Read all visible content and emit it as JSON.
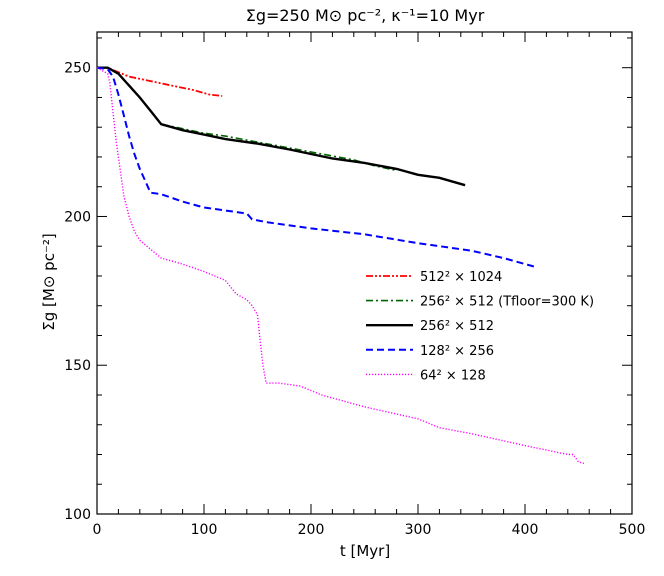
{
  "chart_data": {
    "type": "line",
    "title": "Σg=250 M⊙ pc⁻², κ⁻¹=10 Myr",
    "xlabel": "t [Myr]",
    "ylabel": "Σg [M⊙ pc⁻²]",
    "xlim": [
      0,
      500
    ],
    "ylim": [
      100,
      262
    ],
    "xticks": [
      0,
      100,
      200,
      300,
      400,
      500
    ],
    "yticks": [
      100,
      150,
      200,
      250
    ],
    "grid": false,
    "legend_position": "center-right",
    "series": [
      {
        "name": "512² × 1024",
        "color": "#ff0000",
        "dash": "dash-dot-dot",
        "points": [
          [
            0,
            250
          ],
          [
            10,
            250
          ],
          [
            20,
            248.5
          ],
          [
            30,
            247
          ],
          [
            50,
            245.5
          ],
          [
            70,
            244
          ],
          [
            90,
            242.5
          ],
          [
            105,
            241
          ],
          [
            117,
            240.5
          ]
        ]
      },
      {
        "name": "256² × 512 (Tfloor=300 K)",
        "color": "#006400",
        "dash": "dash-dot",
        "points": [
          [
            0,
            250
          ],
          [
            10,
            250
          ],
          [
            20,
            248
          ],
          [
            30,
            244
          ],
          [
            40,
            240
          ],
          [
            50,
            235.5
          ],
          [
            60,
            231
          ],
          [
            80,
            229.5
          ],
          [
            100,
            228
          ],
          [
            120,
            227
          ],
          [
            150,
            225
          ],
          [
            180,
            223
          ],
          [
            210,
            221
          ],
          [
            240,
            219
          ],
          [
            260,
            217
          ],
          [
            280,
            215.5
          ]
        ]
      },
      {
        "name": "256² × 512",
        "color": "#000000",
        "dash": "solid",
        "points": [
          [
            0,
            250
          ],
          [
            10,
            250
          ],
          [
            20,
            248
          ],
          [
            30,
            244
          ],
          [
            40,
            240
          ],
          [
            50,
            235.5
          ],
          [
            60,
            231
          ],
          [
            80,
            229
          ],
          [
            100,
            227.5
          ],
          [
            120,
            226
          ],
          [
            150,
            224.5
          ],
          [
            180,
            222.5
          ],
          [
            200,
            221
          ],
          [
            220,
            219.5
          ],
          [
            250,
            218
          ],
          [
            280,
            216
          ],
          [
            300,
            214
          ],
          [
            320,
            213
          ],
          [
            344,
            210.5
          ]
        ]
      },
      {
        "name": "128² × 256",
        "color": "#0000ff",
        "dash": "dashed",
        "points": [
          [
            0,
            250
          ],
          [
            10,
            249.5
          ],
          [
            15,
            247
          ],
          [
            20,
            241
          ],
          [
            25,
            234
          ],
          [
            30,
            227
          ],
          [
            35,
            221
          ],
          [
            40,
            216
          ],
          [
            45,
            212
          ],
          [
            50,
            208
          ],
          [
            60,
            207.5
          ],
          [
            80,
            205
          ],
          [
            100,
            203
          ],
          [
            140,
            201
          ],
          [
            145,
            199
          ],
          [
            160,
            198
          ],
          [
            200,
            196
          ],
          [
            250,
            194
          ],
          [
            300,
            191
          ],
          [
            320,
            190
          ],
          [
            350,
            188.5
          ],
          [
            380,
            186
          ],
          [
            410,
            183
          ]
        ]
      },
      {
        "name": "64² × 128",
        "color": "#ff00ff",
        "dash": "dotted",
        "points": [
          [
            0,
            250
          ],
          [
            10,
            248
          ],
          [
            12,
            245
          ],
          [
            15,
            235
          ],
          [
            18,
            225
          ],
          [
            22,
            215
          ],
          [
            25,
            207
          ],
          [
            30,
            200
          ],
          [
            35,
            195
          ],
          [
            40,
            192
          ],
          [
            50,
            189
          ],
          [
            60,
            186
          ],
          [
            80,
            184
          ],
          [
            100,
            181.5
          ],
          [
            120,
            178.5
          ],
          [
            130,
            174
          ],
          [
            140,
            172
          ],
          [
            145,
            170
          ],
          [
            150,
            167
          ],
          [
            152,
            160
          ],
          [
            155,
            150
          ],
          [
            158,
            144
          ],
          [
            170,
            144
          ],
          [
            190,
            143
          ],
          [
            210,
            140
          ],
          [
            250,
            136
          ],
          [
            300,
            132
          ],
          [
            320,
            129
          ],
          [
            350,
            127
          ],
          [
            400,
            123
          ],
          [
            440,
            120
          ],
          [
            445,
            120
          ],
          [
            450,
            117.5
          ],
          [
            455,
            117
          ]
        ]
      }
    ]
  }
}
